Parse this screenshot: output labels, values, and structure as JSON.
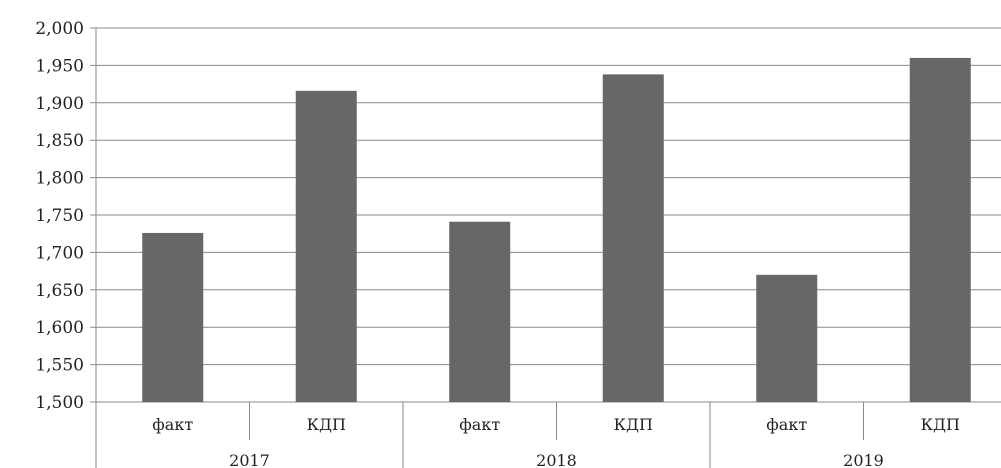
{
  "chart_data": {
    "type": "bar",
    "groups": [
      {
        "label": "2017",
        "categories": [
          "факт",
          "КДП"
        ],
        "values": [
          1726,
          1916
        ]
      },
      {
        "label": "2018",
        "categories": [
          "факт",
          "КДП"
        ],
        "values": [
          1741,
          1938
        ]
      },
      {
        "label": "2019",
        "categories": [
          "факт",
          "КДП"
        ],
        "values": [
          1670,
          1960
        ]
      }
    ],
    "ylim": [
      1500,
      2000
    ],
    "ytick_step": 50,
    "ytick_labels": [
      "1,500",
      "1,550",
      "1,600",
      "1,650",
      "1,700",
      "1,750",
      "1,800",
      "1,850",
      "1,900",
      "1,950",
      "2,000"
    ],
    "grid": true,
    "legend": "none",
    "colors": {
      "bar": "#676767",
      "grid": "#8a8a8a",
      "axis": "#8a8a8a",
      "text": "#222222"
    }
  }
}
